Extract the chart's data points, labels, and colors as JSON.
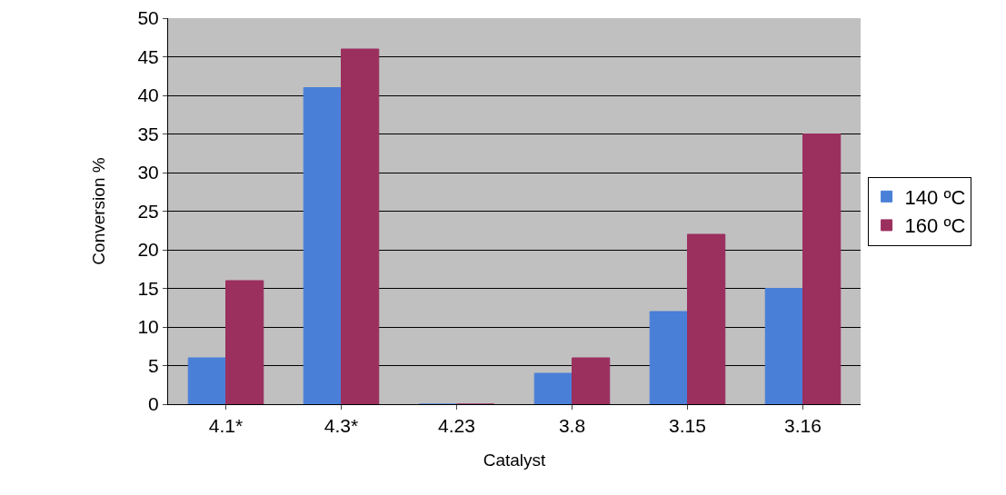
{
  "chart_data": {
    "type": "bar",
    "xlabel": "Catalyst",
    "ylabel": "Conversion %",
    "categories": [
      "4.1*",
      "4.3*",
      "4.23",
      "3.8",
      "3.15",
      "3.16"
    ],
    "series": [
      {
        "name": "140 ºC",
        "color": "#4a7fd8",
        "values": [
          6,
          41,
          0,
          4,
          12,
          15
        ]
      },
      {
        "name": "160 ºC",
        "color": "#9b2f5e",
        "values": [
          16,
          46,
          0,
          6,
          22,
          35
        ]
      }
    ],
    "ylim": [
      0,
      50
    ],
    "yticks": [
      0,
      5,
      10,
      15,
      20,
      25,
      30,
      35,
      40,
      45,
      50
    ],
    "grid": "y",
    "legend": "right"
  }
}
